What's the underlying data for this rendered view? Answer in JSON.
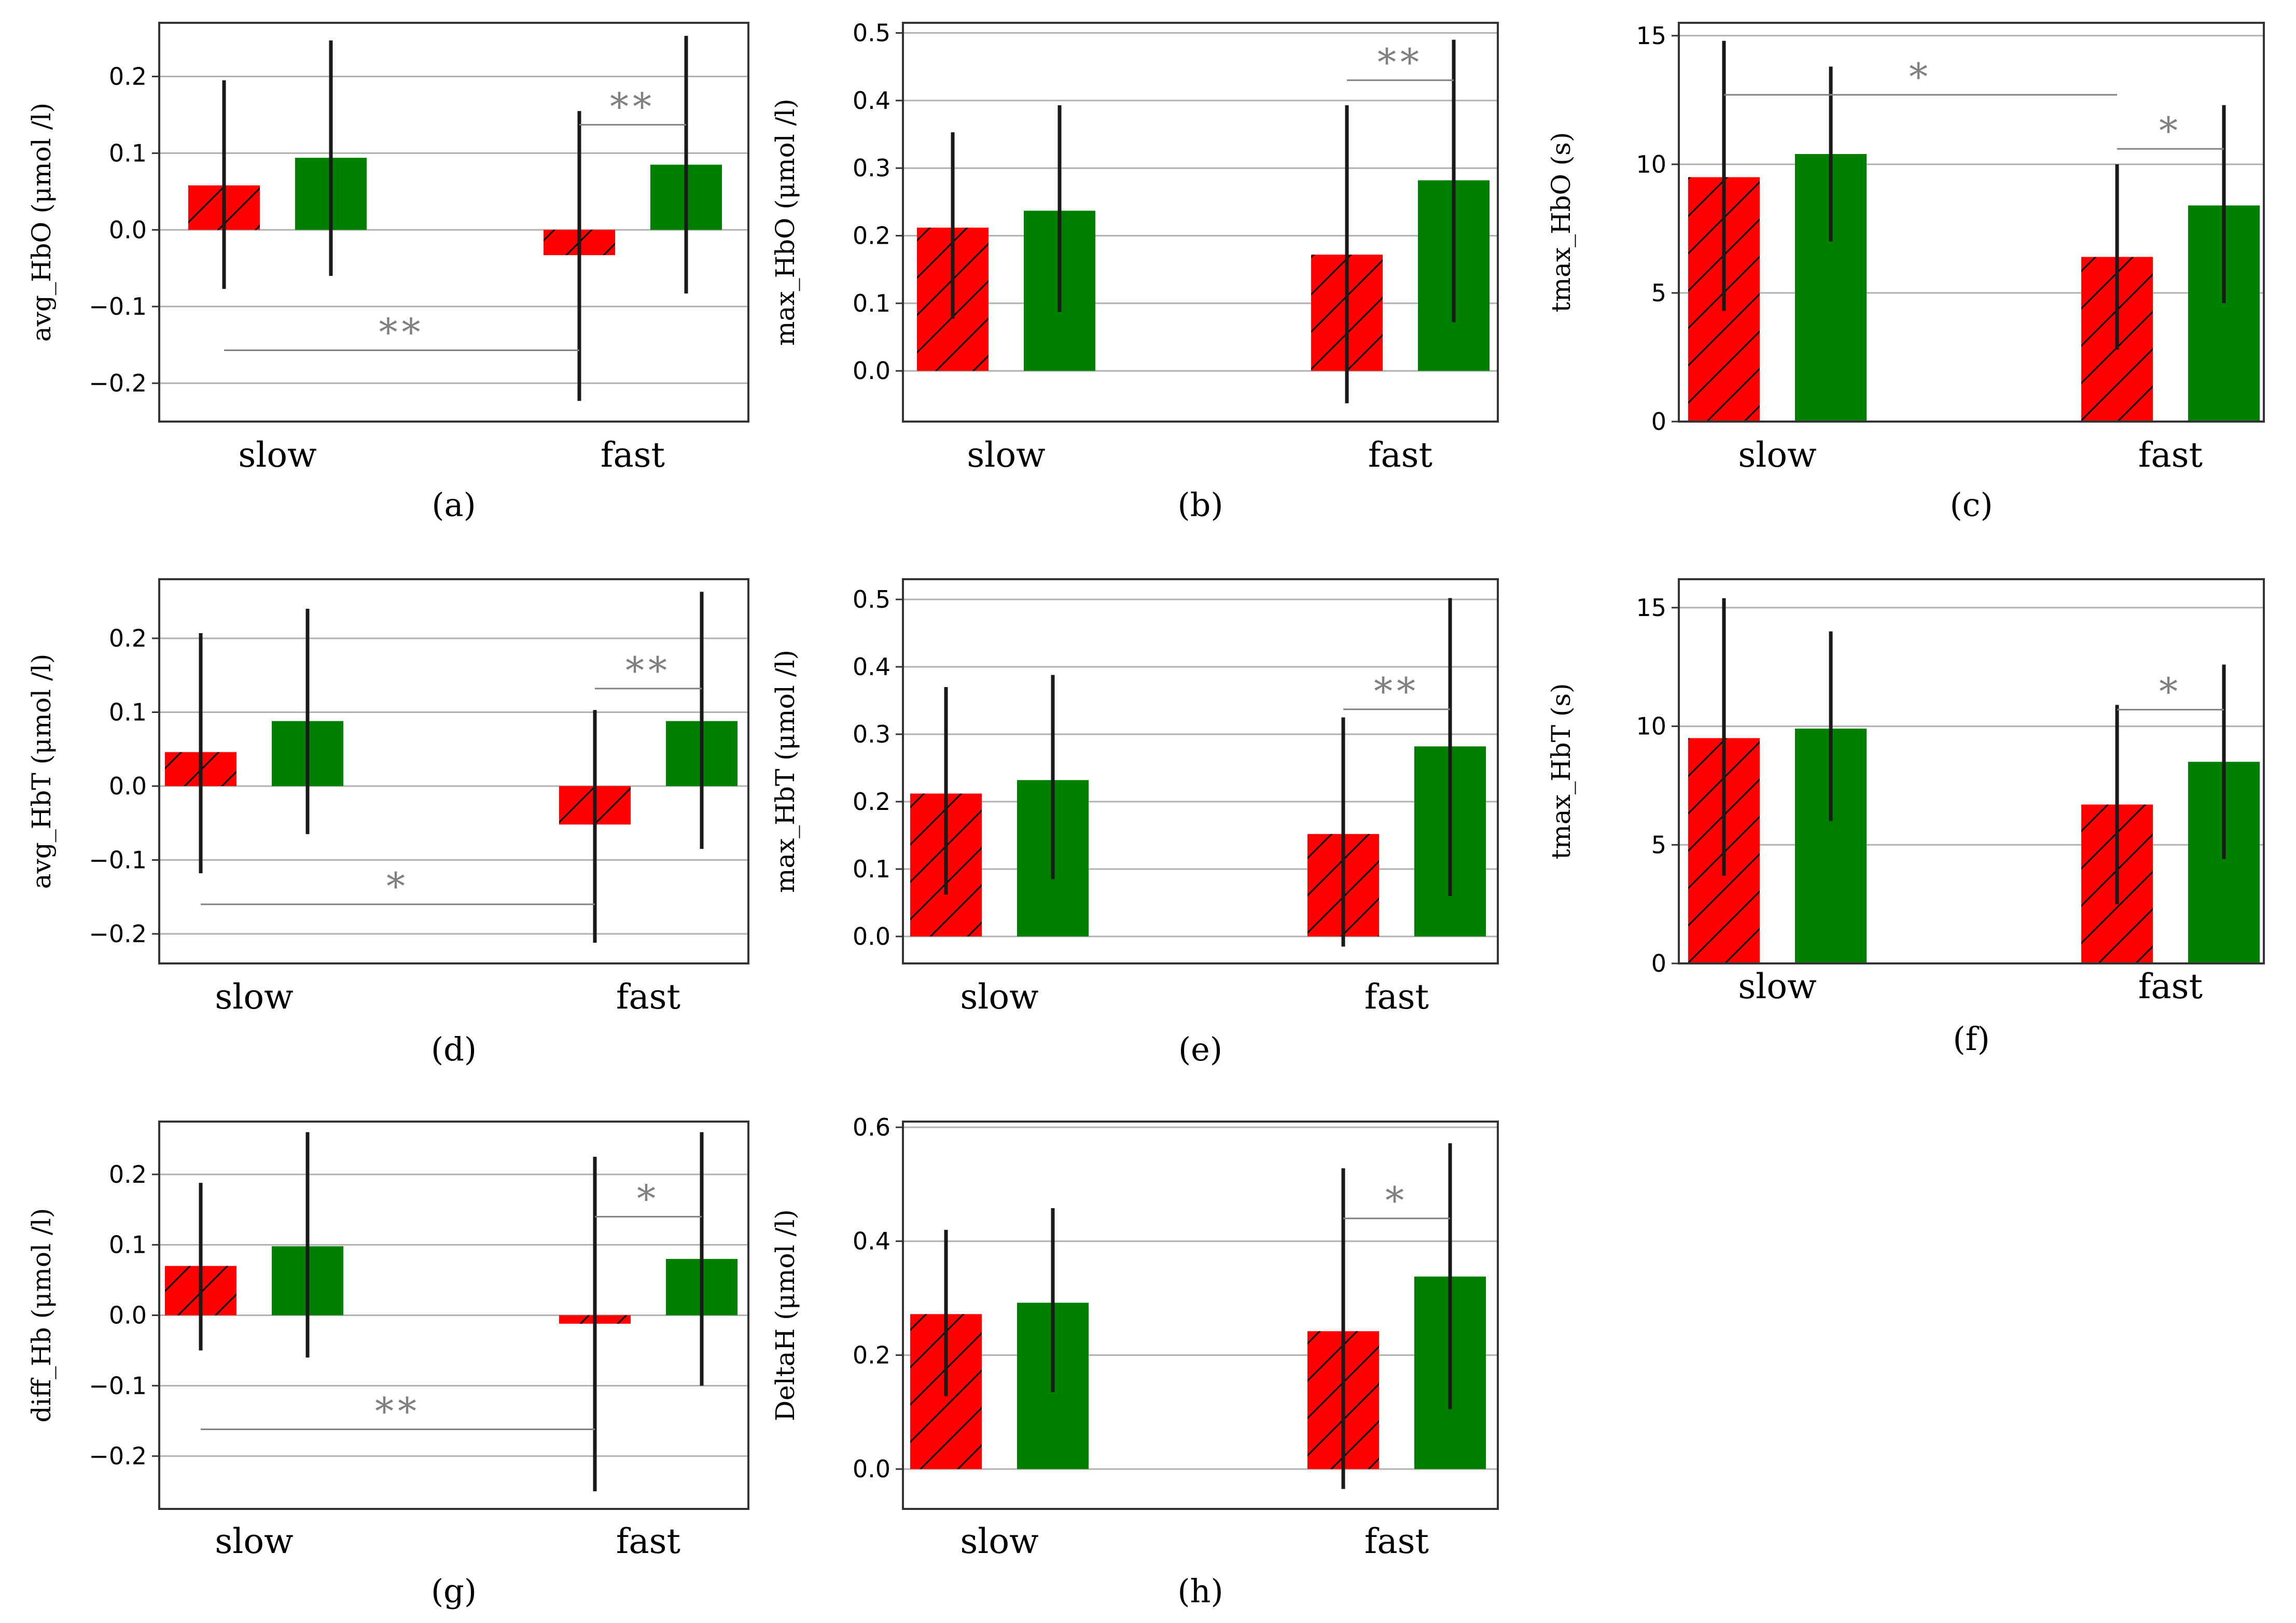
{
  "colors": {
    "red": "#ff0000",
    "green": "#008000",
    "grid": "#b0b0b0",
    "sig": "#808080",
    "errorbar": "#1a1a1a"
  },
  "chart_data": [
    {
      "panel": "(a)",
      "type": "bar",
      "title": "",
      "ylabel": "avg_HbO  (μmol /l)",
      "categories": [
        "slow",
        "fast"
      ],
      "ylim": [
        -0.25,
        0.27
      ],
      "yticks": [
        -0.2,
        -0.1,
        0.0,
        0.1,
        0.2
      ],
      "ytick_labels": [
        "−0.2",
        "−0.1",
        "0.0",
        "0.1",
        "0.2"
      ],
      "grid": true,
      "series": [
        {
          "name": "red (hatched)",
          "color": "red",
          "hatch": true,
          "values": [
            0.058,
            -0.033
          ],
          "err_low": [
            -0.077,
            -0.223
          ],
          "err_high": [
            0.195,
            0.155
          ]
        },
        {
          "name": "green",
          "color": "green",
          "hatch": false,
          "values": [
            0.094,
            0.085
          ],
          "err_low": [
            -0.06,
            -0.083
          ],
          "err_high": [
            0.247,
            0.253
          ]
        }
      ],
      "significance": [
        {
          "from": [
            0,
            0
          ],
          "to": [
            1,
            0
          ],
          "y": -0.157,
          "label": "**"
        },
        {
          "from": [
            1,
            0
          ],
          "to": [
            1,
            1
          ],
          "y": 0.137,
          "label": "**"
        }
      ]
    },
    {
      "panel": "(b)",
      "type": "bar",
      "title": "",
      "ylabel": "max_HbO  (μmol /l)",
      "categories": [
        "slow",
        "fast"
      ],
      "ylim": [
        -0.075,
        0.515
      ],
      "yticks": [
        0.0,
        0.1,
        0.2,
        0.3,
        0.4,
        0.5
      ],
      "ytick_labels": [
        "0.0",
        "0.1",
        "0.2",
        "0.3",
        "0.4",
        "0.5"
      ],
      "grid": true,
      "series": [
        {
          "name": "red (hatched)",
          "color": "red",
          "hatch": true,
          "values": [
            0.212,
            0.172
          ],
          "err_low": [
            0.077,
            -0.048
          ],
          "err_high": [
            0.353,
            0.393
          ]
        },
        {
          "name": "green",
          "color": "green",
          "hatch": false,
          "values": [
            0.237,
            0.282
          ],
          "err_low": [
            0.087,
            0.072
          ],
          "err_high": [
            0.393,
            0.49
          ]
        }
      ],
      "significance": [
        {
          "from": [
            1,
            0
          ],
          "to": [
            1,
            1
          ],
          "y": 0.43,
          "label": "**"
        }
      ]
    },
    {
      "panel": "(c)",
      "type": "bar",
      "title": "",
      "ylabel": "tmax_HbO  (s)",
      "categories": [
        "slow",
        "fast"
      ],
      "ylim": [
        0,
        15.5
      ],
      "yticks": [
        0,
        5,
        10,
        15
      ],
      "ytick_labels": [
        "0",
        "5",
        "10",
        "15"
      ],
      "grid": true,
      "series": [
        {
          "name": "red (hatched)",
          "color": "red",
          "hatch": true,
          "values": [
            9.5,
            6.4
          ],
          "err_low": [
            4.3,
            2.8
          ],
          "err_high": [
            14.8,
            10.0
          ]
        },
        {
          "name": "green",
          "color": "green",
          "hatch": false,
          "values": [
            10.4,
            8.4
          ],
          "err_low": [
            7.0,
            4.6
          ],
          "err_high": [
            13.8,
            12.3
          ]
        }
      ],
      "significance": [
        {
          "from": [
            0,
            0
          ],
          "to": [
            1,
            0
          ],
          "y": 12.7,
          "label": "*"
        },
        {
          "from": [
            1,
            0
          ],
          "to": [
            1,
            1
          ],
          "y": 10.6,
          "label": "*"
        }
      ]
    },
    {
      "panel": "(d)",
      "type": "bar",
      "title": "",
      "ylabel": "avg_HbT  (μmol /l)",
      "categories": [
        "slow",
        "fast"
      ],
      "ylim": [
        -0.24,
        0.28
      ],
      "yticks": [
        -0.2,
        -0.1,
        0.0,
        0.1,
        0.2
      ],
      "ytick_labels": [
        "−0.2",
        "−0.1",
        "0.0",
        "0.1",
        "0.2"
      ],
      "grid": true,
      "series": [
        {
          "name": "red (hatched)",
          "color": "red",
          "hatch": true,
          "values": [
            0.046,
            -0.052
          ],
          "err_low": [
            -0.118,
            -0.212
          ],
          "err_high": [
            0.207,
            0.103
          ]
        },
        {
          "name": "green",
          "color": "green",
          "hatch": false,
          "values": [
            0.088,
            0.088
          ],
          "err_low": [
            -0.065,
            -0.085
          ],
          "err_high": [
            0.24,
            0.263
          ]
        }
      ],
      "significance": [
        {
          "from": [
            0,
            0
          ],
          "to": [
            1,
            0
          ],
          "y": -0.16,
          "label": "*"
        },
        {
          "from": [
            1,
            0
          ],
          "to": [
            1,
            1
          ],
          "y": 0.132,
          "label": "**"
        }
      ]
    },
    {
      "panel": "(e)",
      "type": "bar",
      "title": "",
      "ylabel": "max_HbT  (μmol /l)",
      "categories": [
        "slow",
        "fast"
      ],
      "ylim": [
        -0.04,
        0.53
      ],
      "yticks": [
        0.0,
        0.1,
        0.2,
        0.3,
        0.4,
        0.5
      ],
      "ytick_labels": [
        "0.0",
        "0.1",
        "0.2",
        "0.3",
        "0.4",
        "0.5"
      ],
      "grid": true,
      "series": [
        {
          "name": "red (hatched)",
          "color": "red",
          "hatch": true,
          "values": [
            0.212,
            0.152
          ],
          "err_low": [
            0.062,
            -0.015
          ],
          "err_high": [
            0.37,
            0.325
          ]
        },
        {
          "name": "green",
          "color": "green",
          "hatch": false,
          "values": [
            0.232,
            0.282
          ],
          "err_low": [
            0.085,
            0.06
          ],
          "err_high": [
            0.388,
            0.502
          ]
        }
      ],
      "significance": [
        {
          "from": [
            1,
            0
          ],
          "to": [
            1,
            1
          ],
          "y": 0.337,
          "label": "**"
        }
      ]
    },
    {
      "panel": "(f)",
      "type": "bar",
      "title": "",
      "ylabel": "tmax_HbT  (s)",
      "categories": [
        "slow",
        "fast"
      ],
      "ylim": [
        0,
        16.2
      ],
      "yticks": [
        0,
        5,
        10,
        15
      ],
      "ytick_labels": [
        "0",
        "5",
        "10",
        "15"
      ],
      "grid": true,
      "series": [
        {
          "name": "red (hatched)",
          "color": "red",
          "hatch": true,
          "values": [
            9.5,
            6.7
          ],
          "err_low": [
            3.7,
            2.5
          ],
          "err_high": [
            15.4,
            10.9
          ]
        },
        {
          "name": "green",
          "color": "green",
          "hatch": false,
          "values": [
            9.9,
            8.5
          ],
          "err_low": [
            6.0,
            4.4
          ],
          "err_high": [
            14.0,
            12.6
          ]
        }
      ],
      "significance": [
        {
          "from": [
            1,
            0
          ],
          "to": [
            1,
            1
          ],
          "y": 10.7,
          "label": "*"
        }
      ]
    },
    {
      "panel": "(g)",
      "type": "bar",
      "title": "",
      "ylabel": "diff_Hb  (μmol /l)",
      "categories": [
        "slow",
        "fast"
      ],
      "ylim": [
        -0.275,
        0.275
      ],
      "yticks": [
        -0.2,
        -0.1,
        0.0,
        0.1,
        0.2
      ],
      "ytick_labels": [
        "−0.2",
        "−0.1",
        "0.0",
        "0.1",
        "0.2"
      ],
      "grid": true,
      "series": [
        {
          "name": "red (hatched)",
          "color": "red",
          "hatch": true,
          "values": [
            0.07,
            -0.012
          ],
          "err_low": [
            -0.05,
            -0.25
          ],
          "err_high": [
            0.188,
            0.225
          ]
        },
        {
          "name": "green",
          "color": "green",
          "hatch": false,
          "values": [
            0.098,
            0.08
          ],
          "err_low": [
            -0.06,
            -0.1
          ],
          "err_high": [
            0.26,
            0.26
          ]
        }
      ],
      "significance": [
        {
          "from": [
            0,
            0
          ],
          "to": [
            1,
            0
          ],
          "y": -0.162,
          "label": "**"
        },
        {
          "from": [
            1,
            0
          ],
          "to": [
            1,
            1
          ],
          "y": 0.14,
          "label": "*"
        }
      ]
    },
    {
      "panel": "(h)",
      "type": "bar",
      "title": "",
      "ylabel": "DeltaH  (μmol /l)",
      "categories": [
        "slow",
        "fast"
      ],
      "ylim": [
        -0.07,
        0.61
      ],
      "yticks": [
        0.0,
        0.2,
        0.4,
        0.6
      ],
      "ytick_labels": [
        "0.0",
        "0.2",
        "0.4",
        "0.6"
      ],
      "grid": true,
      "series": [
        {
          "name": "red (hatched)",
          "color": "red",
          "hatch": true,
          "values": [
            0.272,
            0.242
          ],
          "err_low": [
            0.128,
            -0.035
          ],
          "err_high": [
            0.42,
            0.528
          ]
        },
        {
          "name": "green",
          "color": "green",
          "hatch": false,
          "values": [
            0.292,
            0.338
          ],
          "err_low": [
            0.135,
            0.105
          ],
          "err_high": [
            0.458,
            0.572
          ]
        }
      ],
      "significance": [
        {
          "from": [
            1,
            0
          ],
          "to": [
            1,
            1
          ],
          "y": 0.44,
          "label": "*"
        }
      ]
    }
  ]
}
